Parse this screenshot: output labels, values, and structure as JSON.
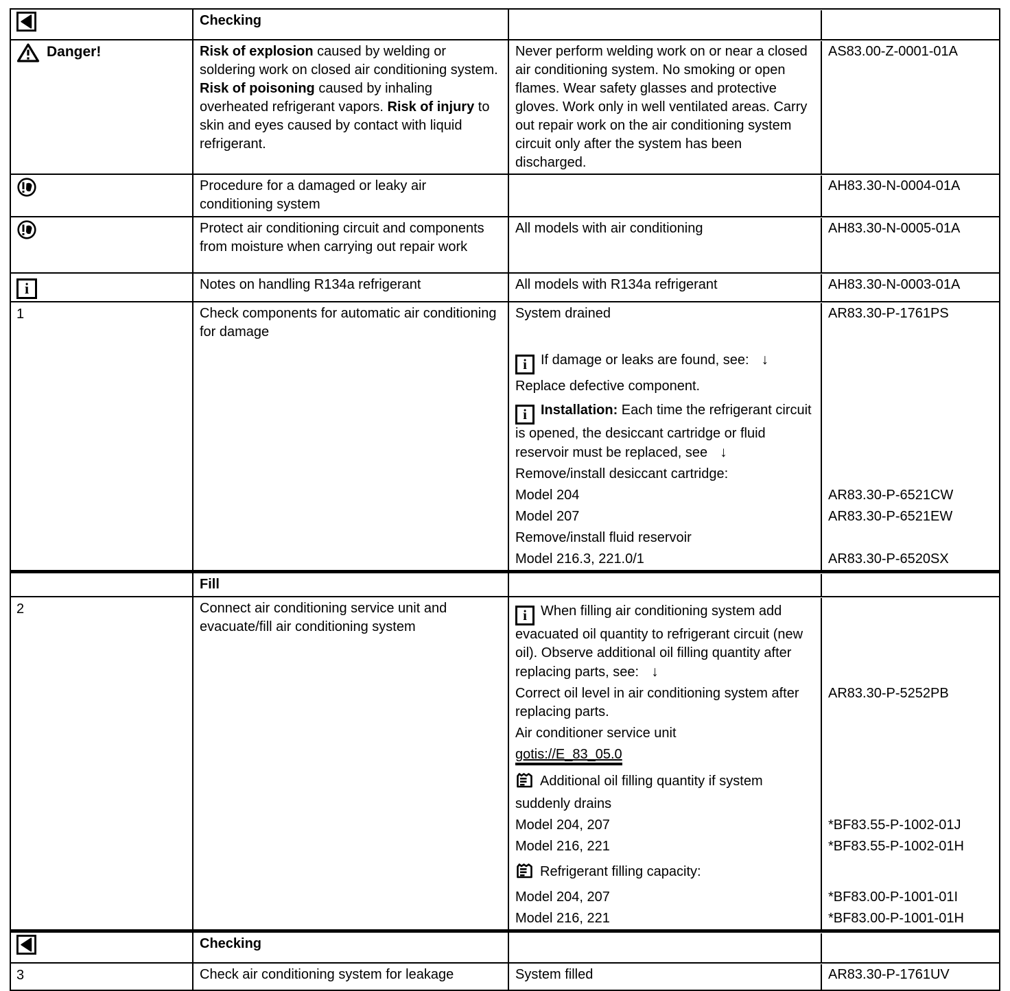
{
  "document": {
    "background": "#ffffff",
    "text_color": "#000000",
    "language": "en"
  },
  "table": {
    "rows": [
      {
        "type": "header",
        "name": "checking-top",
        "col1_icon": "back",
        "title": "Checking"
      },
      {
        "type": "content",
        "name": "danger-warning",
        "col1_icon": "danger",
        "col1_label": "Danger!",
        "col2": [
          {
            "text": "Risk of explosion",
            "bold": true
          },
          {
            "text": "  caused by welding or soldering work on closed air conditioning system. "
          },
          {
            "text": "Risk of poisoning",
            "bold": true
          },
          {
            "text": "  caused by inhaling overheated refrigerant vapors.  "
          },
          {
            "text": "Risk of injury",
            "bold": true
          },
          {
            "text": " to skin and eyes caused by contact with liquid refrigerant."
          }
        ],
        "lines": [
          {
            "text": "Never perform welding work on or near a closed air conditioning system. No smoking or open flames. Wear safety glasses and protective gloves. Work only in well ventilated areas. Carry out repair work on the air conditioning system circuit only after the system has been discharged.",
            "ref": "AS83.00-Z-0001-01A"
          }
        ]
      },
      {
        "type": "content",
        "name": "procedure-damaged-system",
        "col1_icon": "note",
        "col2": [
          {
            "text": "Procedure for a damaged or leaky air conditioning system"
          }
        ],
        "lines": [
          {
            "text": "",
            "ref": "AH83.30-N-0004-01A"
          }
        ]
      },
      {
        "type": "content",
        "name": "protect-from-moisture",
        "col1_icon": "note",
        "col2": [
          {
            "text": "Protect air conditioning circuit and components from moisture when carrying out repair work"
          }
        ],
        "lines": [
          {
            "text": "All models with air conditioning",
            "ref": "AH83.30-N-0005-01A"
          }
        ]
      },
      {
        "type": "content",
        "name": "notes-r134a",
        "col1_icon": "info",
        "col2": [
          {
            "text": "Notes on handling R134a refrigerant"
          }
        ],
        "lines": [
          {
            "text": "All models with R134a refrigerant",
            "ref": "AH83.30-N-0003-01A"
          }
        ]
      },
      {
        "type": "content",
        "name": "step-1",
        "num": "1",
        "col2": [
          {
            "text": "Check components for automatic air conditioning for damage"
          }
        ],
        "lines": [
          {
            "text": "System drained",
            "ref": "AR83.30-P-1761PS"
          },
          {
            "spacer": true
          },
          {
            "icon": "info",
            "text": "If damage or leaks are found, see:",
            "arrow": "↓"
          },
          {
            "text": "Replace defective component."
          },
          {
            "icon": "info",
            "bold": "Installation:",
            "text": "Each time the refrigerant circuit is opened, the desiccant cartridge or fluid reservoir must be replaced, see",
            "arrow": "↓"
          },
          {
            "text": "Remove/install desiccant cartridge:"
          },
          {
            "text": "Model 204",
            "ref": "AR83.30-P-6521CW"
          },
          {
            "text": "Model 207",
            "ref": "AR83.30-P-6521EW"
          },
          {
            "text": "Remove/install fluid reservoir"
          },
          {
            "text": "Model 216.3, 221.0/1",
            "ref": "AR83.30-P-6520SX"
          }
        ]
      },
      {
        "type": "header",
        "name": "fill-section",
        "title": "Fill",
        "thick_top": true
      },
      {
        "type": "content",
        "name": "step-2",
        "num": "2",
        "col2": [
          {
            "text": "Connect air conditioning service unit and evacuate/fill air conditioning system"
          }
        ],
        "lines": [
          {
            "icon": "info",
            "text": "When filling air conditioning system add evacuated oil quantity to refrigerant circuit (new oil). Observe additional oil filling quantity after replacing parts, see:",
            "arrow": "↓"
          },
          {
            "text": "Correct oil level in air conditioning system after replacing parts.",
            "ref": "AR83.30-P-5252PB"
          },
          {
            "text": "Air conditioner service unit"
          },
          {
            "link": "gotis://E_83_05.0"
          },
          {
            "icon": "table",
            "text": "Additional oil filling quantity if system suddenly drains"
          },
          {
            "text": "Model 204, 207",
            "ref": "*BF83.55-P-1002-01J"
          },
          {
            "text": "Model 216, 221",
            "ref": "*BF83.55-P-1002-01H"
          },
          {
            "icon": "table",
            "text": "Refrigerant filling capacity:"
          },
          {
            "text": "Model 204, 207",
            "ref": "*BF83.00-P-1001-01I"
          },
          {
            "text": "Model 216, 221",
            "ref": "*BF83.00-P-1001-01H"
          }
        ]
      },
      {
        "type": "header",
        "name": "checking-bottom",
        "col1_icon": "back",
        "title": "Checking",
        "thick_top": true
      },
      {
        "type": "content",
        "name": "step-3",
        "num": "3",
        "col2": [
          {
            "text": "Check air conditioning system for leakage"
          }
        ],
        "lines": [
          {
            "text": "System filled",
            "ref": "AR83.30-P-1761UV"
          }
        ]
      }
    ]
  }
}
